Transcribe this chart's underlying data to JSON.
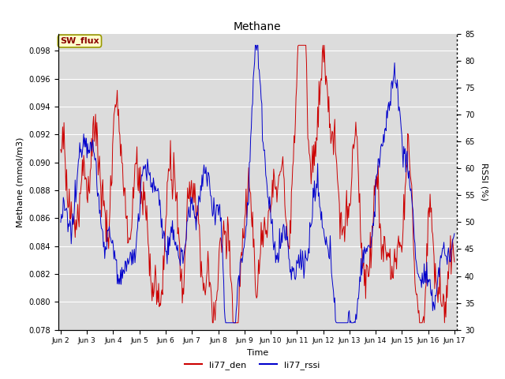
{
  "title": "Methane",
  "ylabel_left": "Methane (mmol/m3)",
  "ylabel_right": "RSSI (%)",
  "xlabel": "Time",
  "ylim_left": [
    0.078,
    0.0992
  ],
  "ylim_right": [
    30,
    85
  ],
  "yticks_left": [
    0.078,
    0.08,
    0.082,
    0.084,
    0.086,
    0.088,
    0.09,
    0.092,
    0.094,
    0.096,
    0.098
  ],
  "yticks_right": [
    30,
    35,
    40,
    45,
    50,
    55,
    60,
    65,
    70,
    75,
    80,
    85
  ],
  "xtick_labels": [
    "Jun 2",
    "Jun 3",
    "Jun 4",
    "Jun 5",
    "Jun 6",
    "Jun 7",
    "Jun 8",
    "Jun 9",
    "Jun 10",
    "Jun 11",
    "Jun 12",
    "Jun 13",
    "Jun 14",
    "Jun 15",
    "Jun 16",
    "Jun 17"
  ],
  "sw_flux_label": "SW_flux",
  "line1_label": "li77_den",
  "line2_label": "li77_rssi",
  "line1_color": "#cc0000",
  "line2_color": "#0000cc",
  "background_color": "#dcdcdc",
  "fig_background": "#ffffff"
}
